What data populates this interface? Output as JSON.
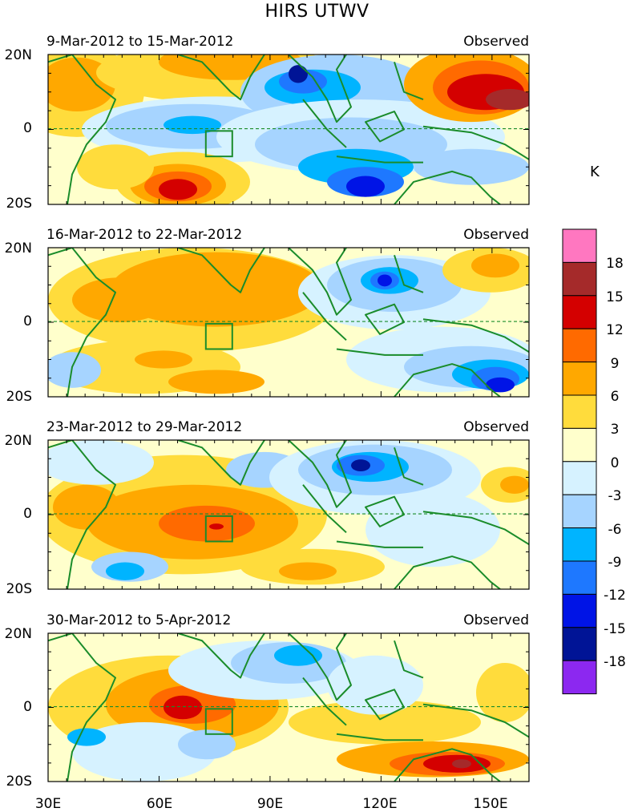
{
  "title": "HIRS UTWV",
  "panels": [
    {
      "period": "9-Mar-2012 to 15-Mar-2012",
      "label": "Observed"
    },
    {
      "period": "16-Mar-2012 to 22-Mar-2012",
      "label": "Observed"
    },
    {
      "period": "23-Mar-2012 to 29-Mar-2012",
      "label": "Observed"
    },
    {
      "period": "30-Mar-2012 to 5-Apr-2012",
      "label": "Observed"
    }
  ],
  "lat_ticks": [
    "20N",
    "0",
    "20S"
  ],
  "lon_ticks": [
    "30E",
    "60E",
    "90E",
    "120E",
    "150E"
  ],
  "colorbar": {
    "unit": "K",
    "labels": [
      "18",
      "15",
      "12",
      "9",
      "6",
      "3",
      "0",
      "-3",
      "-6",
      "-9",
      "-12",
      "-15",
      "-18"
    ],
    "colors": [
      "#ff77c0",
      "#a52a2a",
      "#d40000",
      "#ff6a00",
      "#ffa800",
      "#ffdc3c",
      "#ffffcc",
      "#d6f2ff",
      "#a6d4ff",
      "#00b4ff",
      "#1e78ff",
      "#0014e6",
      "#001496",
      "#8c28f0"
    ]
  },
  "colors": {
    "coastline": "#1a8c2a",
    "equator": "#1a8c2a"
  }
}
